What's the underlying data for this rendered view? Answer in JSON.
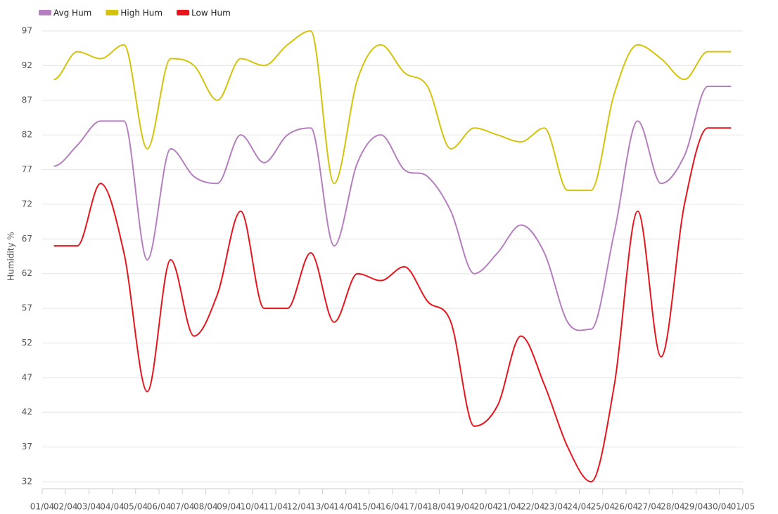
{
  "chart_data": {
    "type": "line",
    "ylabel": "Humidity %",
    "xticks": [
      "01/04",
      "02/04",
      "03/04",
      "04/04",
      "05/04",
      "06/04",
      "07/04",
      "08/04",
      "09/04",
      "10/04",
      "11/04",
      "12/04",
      "13/04",
      "14/04",
      "15/04",
      "16/04",
      "17/04",
      "18/04",
      "19/04",
      "20/04",
      "21/04",
      "22/04",
      "23/04",
      "24/04",
      "25/04",
      "26/04",
      "27/04",
      "28/04",
      "29/04",
      "30/04",
      "01/05"
    ],
    "series": [
      {
        "name": "Avg Hum",
        "color": "#b57fbf",
        "values": [
          77.5,
          80.5,
          84,
          84,
          64,
          80,
          76,
          75,
          82,
          78,
          82,
          83,
          66,
          78,
          82,
          77,
          76,
          71,
          62,
          65,
          69,
          65,
          55,
          54,
          68,
          84,
          75,
          79,
          89,
          89
        ]
      },
      {
        "name": "High Hum",
        "color": "#d4c30a",
        "values": [
          90,
          94,
          93,
          95,
          80,
          93,
          92,
          87,
          93,
          92,
          95,
          97,
          75,
          90,
          95,
          91,
          89,
          80,
          83,
          82,
          81,
          83,
          74,
          74,
          88,
          95,
          93,
          90,
          94,
          94
        ]
      },
      {
        "name": "Low Hum",
        "color": "#e8141c",
        "values": [
          66,
          66,
          75,
          65,
          45,
          64,
          53,
          59,
          71,
          57,
          57,
          65,
          55,
          62,
          61,
          63,
          58,
          55,
          40,
          43,
          53,
          46,
          37,
          32,
          46,
          71,
          50,
          72,
          83,
          83
        ]
      }
    ],
    "ylim": [
      32,
      97
    ],
    "yticks": [
      32,
      37,
      42,
      47,
      52,
      57,
      62,
      67,
      72,
      77,
      82,
      87,
      92,
      97
    ],
    "grid": true,
    "legend": "top-left"
  }
}
